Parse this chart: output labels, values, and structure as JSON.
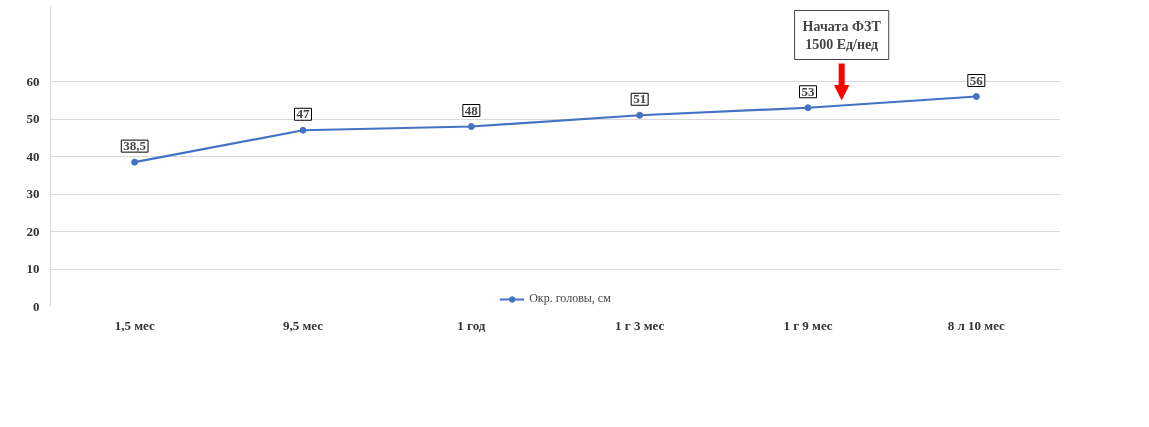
{
  "chart_data": {
    "type": "line",
    "categories": [
      "1,5 мес",
      "9,5 мес",
      "1 год",
      "1 г 3 мес",
      "1 г 9 мес",
      "8 л 10 мес"
    ],
    "series": [
      {
        "name": "Окр. головы, см",
        "color": "#4472c4",
        "values": [
          38.5,
          47,
          48,
          51,
          53,
          56
        ],
        "value_labels": [
          "38,5",
          "47",
          "48",
          "51",
          "53",
          "56"
        ]
      }
    ],
    "ylim": [
      0,
      80
    ],
    "yticks": [
      0,
      10,
      20,
      30,
      40,
      50,
      60
    ],
    "grid": "y",
    "legend": "bottom",
    "marker": "circle",
    "line_style": "solid",
    "annotations": [
      "Начата ФЗТ 1500 Ед/нед"
    ]
  }
}
